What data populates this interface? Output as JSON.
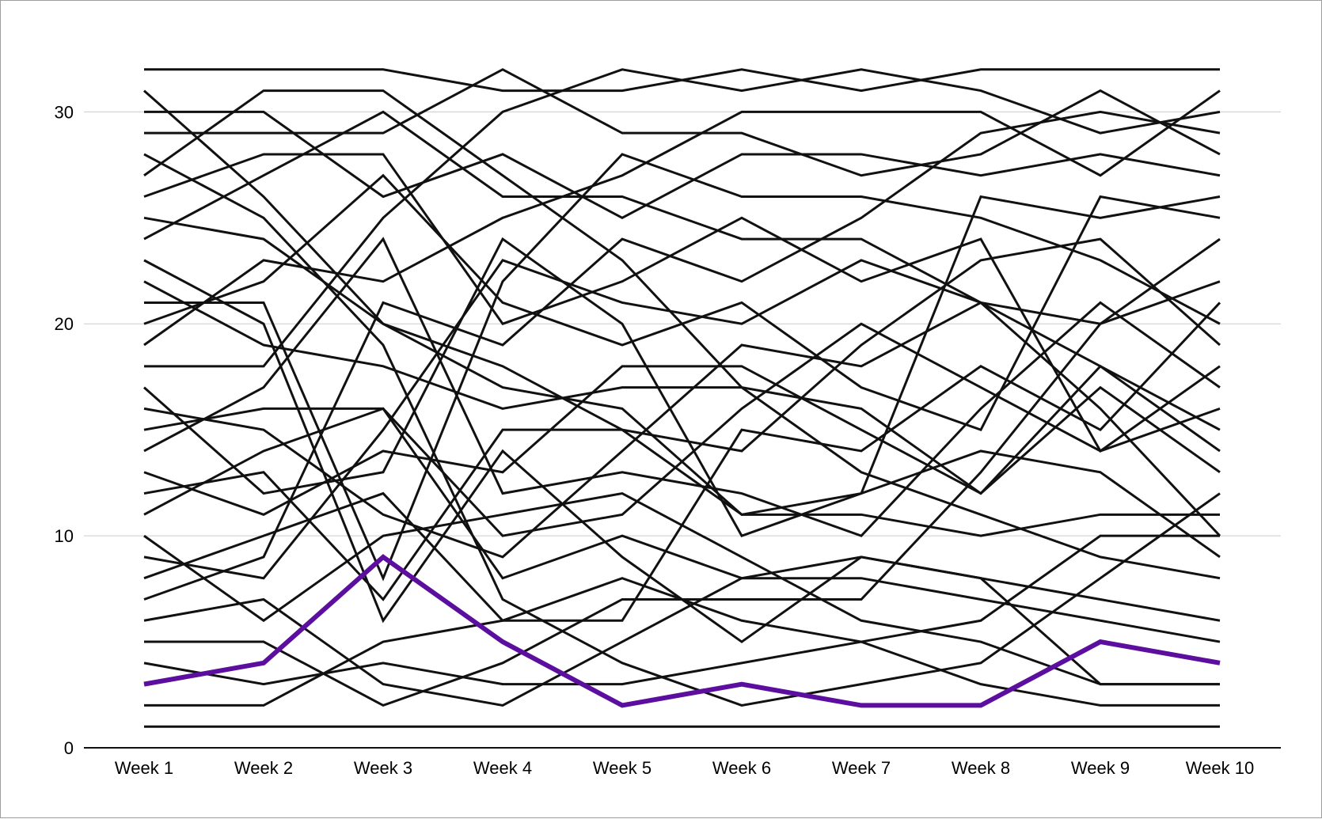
{
  "chart_data": {
    "type": "line",
    "title": "",
    "xlabel": "",
    "ylabel": "",
    "categories": [
      "Week 1",
      "Week 2",
      "Week 3",
      "Week 4",
      "Week 5",
      "Week 6",
      "Week 7",
      "Week 8",
      "Week 9",
      "Week 10"
    ],
    "ylim": [
      0,
      33
    ],
    "yticks": [
      0,
      10,
      20,
      30
    ],
    "grid": true,
    "legend": "none",
    "colors": {
      "default_series": "#111111",
      "highlight_series": "#5c0e9e",
      "gridline": "#cccccc",
      "axis": "#111111"
    },
    "highlight_series_index": 0,
    "series": [
      {
        "values": [
          3,
          4,
          9,
          5,
          2,
          3,
          2,
          2,
          5,
          4
        ]
      },
      {
        "values": [
          32,
          32,
          32,
          31,
          31,
          32,
          31,
          32,
          32,
          32
        ]
      },
      {
        "values": [
          1,
          1,
          1,
          1,
          1,
          1,
          1,
          1,
          1,
          1
        ]
      },
      {
        "values": [
          29,
          29,
          29,
          32,
          29,
          29,
          27,
          28,
          31,
          28
        ]
      },
      {
        "values": [
          30,
          30,
          26,
          28,
          25,
          28,
          28,
          27,
          28,
          27
        ]
      },
      {
        "values": [
          27,
          31,
          31,
          27,
          23,
          17,
          16,
          12,
          17,
          13
        ]
      },
      {
        "values": [
          31,
          26,
          20,
          17,
          16,
          11,
          11,
          10,
          11,
          11
        ]
      },
      {
        "values": [
          18,
          18,
          25,
          30,
          32,
          31,
          32,
          31,
          29,
          30
        ]
      },
      {
        "values": [
          26,
          28,
          28,
          20,
          22,
          25,
          22,
          24,
          14,
          18
        ]
      },
      {
        "values": [
          28,
          25,
          19,
          7,
          4,
          2,
          3,
          4,
          8,
          12
        ]
      },
      {
        "values": [
          24,
          27,
          30,
          26,
          26,
          24,
          24,
          21,
          20,
          22
        ]
      },
      {
        "values": [
          25,
          24,
          20,
          18,
          15,
          11,
          12,
          14,
          13,
          9
        ]
      },
      {
        "values": [
          21,
          21,
          8,
          22,
          28,
          26,
          26,
          25,
          23,
          20
        ]
      },
      {
        "values": [
          20,
          22,
          27,
          21,
          19,
          21,
          17,
          15,
          26,
          25
        ]
      },
      {
        "values": [
          19,
          23,
          22,
          25,
          27,
          30,
          30,
          30,
          27,
          31
        ]
      },
      {
        "values": [
          23,
          20,
          6,
          14,
          9,
          5,
          9,
          8,
          3,
          3
        ]
      },
      {
        "values": [
          17,
          12,
          13,
          24,
          20,
          10,
          12,
          26,
          25,
          26
        ]
      },
      {
        "values": [
          16,
          15,
          11,
          9,
          14,
          19,
          18,
          21,
          18,
          15
        ]
      },
      {
        "values": [
          22,
          19,
          18,
          16,
          17,
          17,
          13,
          11,
          9,
          8
        ]
      },
      {
        "values": [
          15,
          16,
          16,
          10,
          11,
          16,
          20,
          17,
          14,
          16
        ]
      },
      {
        "values": [
          14,
          17,
          24,
          12,
          13,
          12,
          10,
          16,
          21,
          17
        ]
      },
      {
        "values": [
          13,
          11,
          14,
          13,
          18,
          18,
          15,
          12,
          18,
          14
        ]
      },
      {
        "values": [
          12,
          13,
          7,
          15,
          15,
          14,
          19,
          23,
          24,
          19
        ]
      },
      {
        "values": [
          11,
          14,
          16,
          8,
          10,
          8,
          9,
          8,
          7,
          6
        ]
      },
      {
        "values": [
          10,
          6,
          10,
          11,
          12,
          9,
          6,
          5,
          3,
          3
        ]
      },
      {
        "values": [
          9,
          8,
          15,
          23,
          21,
          20,
          23,
          21,
          16,
          10
        ]
      },
      {
        "values": [
          8,
          10,
          12,
          6,
          6,
          15,
          14,
          18,
          15,
          21
        ]
      },
      {
        "values": [
          7,
          9,
          21,
          19,
          24,
          22,
          25,
          29,
          30,
          29
        ]
      },
      {
        "values": [
          6,
          7,
          3,
          2,
          5,
          8,
          8,
          7,
          6,
          5
        ]
      },
      {
        "values": [
          5,
          5,
          2,
          4,
          7,
          7,
          7,
          13,
          20,
          24
        ]
      },
      {
        "values": [
          4,
          3,
          4,
          3,
          3,
          4,
          5,
          6,
          10,
          10
        ]
      },
      {
        "values": [
          2,
          2,
          5,
          6,
          8,
          6,
          5,
          3,
          2,
          2
        ]
      }
    ]
  }
}
